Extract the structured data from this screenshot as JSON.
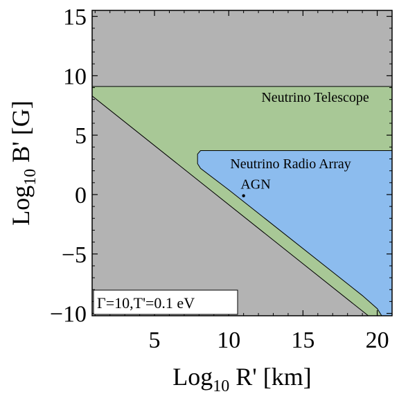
{
  "chart_data": {
    "type": "area",
    "title": "",
    "xlabel_main": "Log",
    "xlabel_sub": "10",
    "xlabel_rest": " R' [km]",
    "ylabel_main": "Log",
    "ylabel_sub": "10",
    "ylabel_rest": " B' [G]",
    "xlim": [
      0.8,
      21
    ],
    "ylim": [
      -10.2,
      15.5
    ],
    "x_ticks": [
      5,
      10,
      15,
      20
    ],
    "x_tick_labels": [
      "5",
      "10",
      "15",
      "20"
    ],
    "y_ticks": [
      -10,
      -5,
      0,
      5,
      10,
      15
    ],
    "y_tick_labels": [
      "−10",
      "−5",
      "0",
      "5",
      "10",
      "15"
    ],
    "legend_text": "Γ=10,T'=0.1 eV",
    "regions": [
      {
        "label": "Neutrino Telescope",
        "color": "#a8c896",
        "label_pos": [
          12.2,
          7.8
        ],
        "boundary": [
          [
            0.8,
            8.3
          ],
          [
            0.8,
            9.1
          ],
          [
            21,
            9.1
          ],
          [
            21,
            -10.2
          ],
          [
            19.4,
            -10.2
          ]
        ]
      },
      {
        "label": "Neutrino Radio Array",
        "color": "#8cbcee",
        "label_pos": [
          10.1,
          2.2
        ],
        "boundary": [
          [
            8.1,
            3.7
          ],
          [
            21,
            3.7
          ],
          [
            21,
            -10.2
          ],
          [
            20.3,
            -10.2
          ],
          [
            20.0,
            -9.6
          ],
          [
            19.0,
            -8.5
          ],
          [
            10.0,
            0.4
          ],
          [
            8.1,
            2.2
          ],
          [
            7.9,
            2.6
          ],
          [
            7.9,
            3.4
          ]
        ]
      }
    ],
    "points": [
      {
        "label": "AGN",
        "x": 11.0,
        "y": -0.1,
        "label_pos": [
          10.8,
          0.5
        ]
      }
    ],
    "colors": {
      "excluded": "#b3b3b3",
      "frame": "#000000"
    }
  }
}
